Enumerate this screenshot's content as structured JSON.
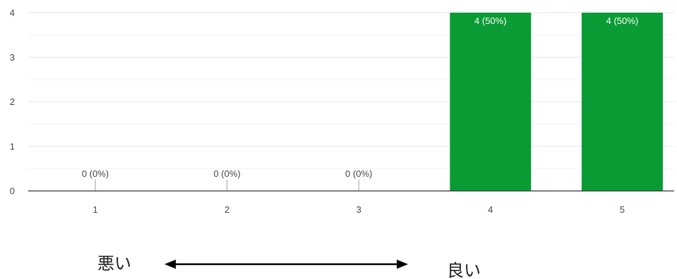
{
  "chart_data": {
    "type": "bar",
    "categories": [
      "1",
      "2",
      "3",
      "4",
      "5"
    ],
    "values": [
      0,
      0,
      0,
      4,
      4
    ],
    "data_labels": [
      "0 (0%)",
      "0 (0%)",
      "0 (0%)",
      "4 (50%)",
      "4 (50%)"
    ],
    "ylim": [
      0,
      4
    ],
    "yticks": [
      0,
      1,
      2,
      3,
      4
    ],
    "grid": true,
    "annotations": {
      "left_label": "悪い",
      "right_label": "良い"
    },
    "colors": {
      "bar": "#0a9b34",
      "label_inside": "#ffffff",
      "label_outside": "#444444",
      "grid_major": "#e6e6e6",
      "grid_minor": "#f3f3f3",
      "axis": "#333333",
      "zero_stem": "#9e9e9e"
    }
  }
}
